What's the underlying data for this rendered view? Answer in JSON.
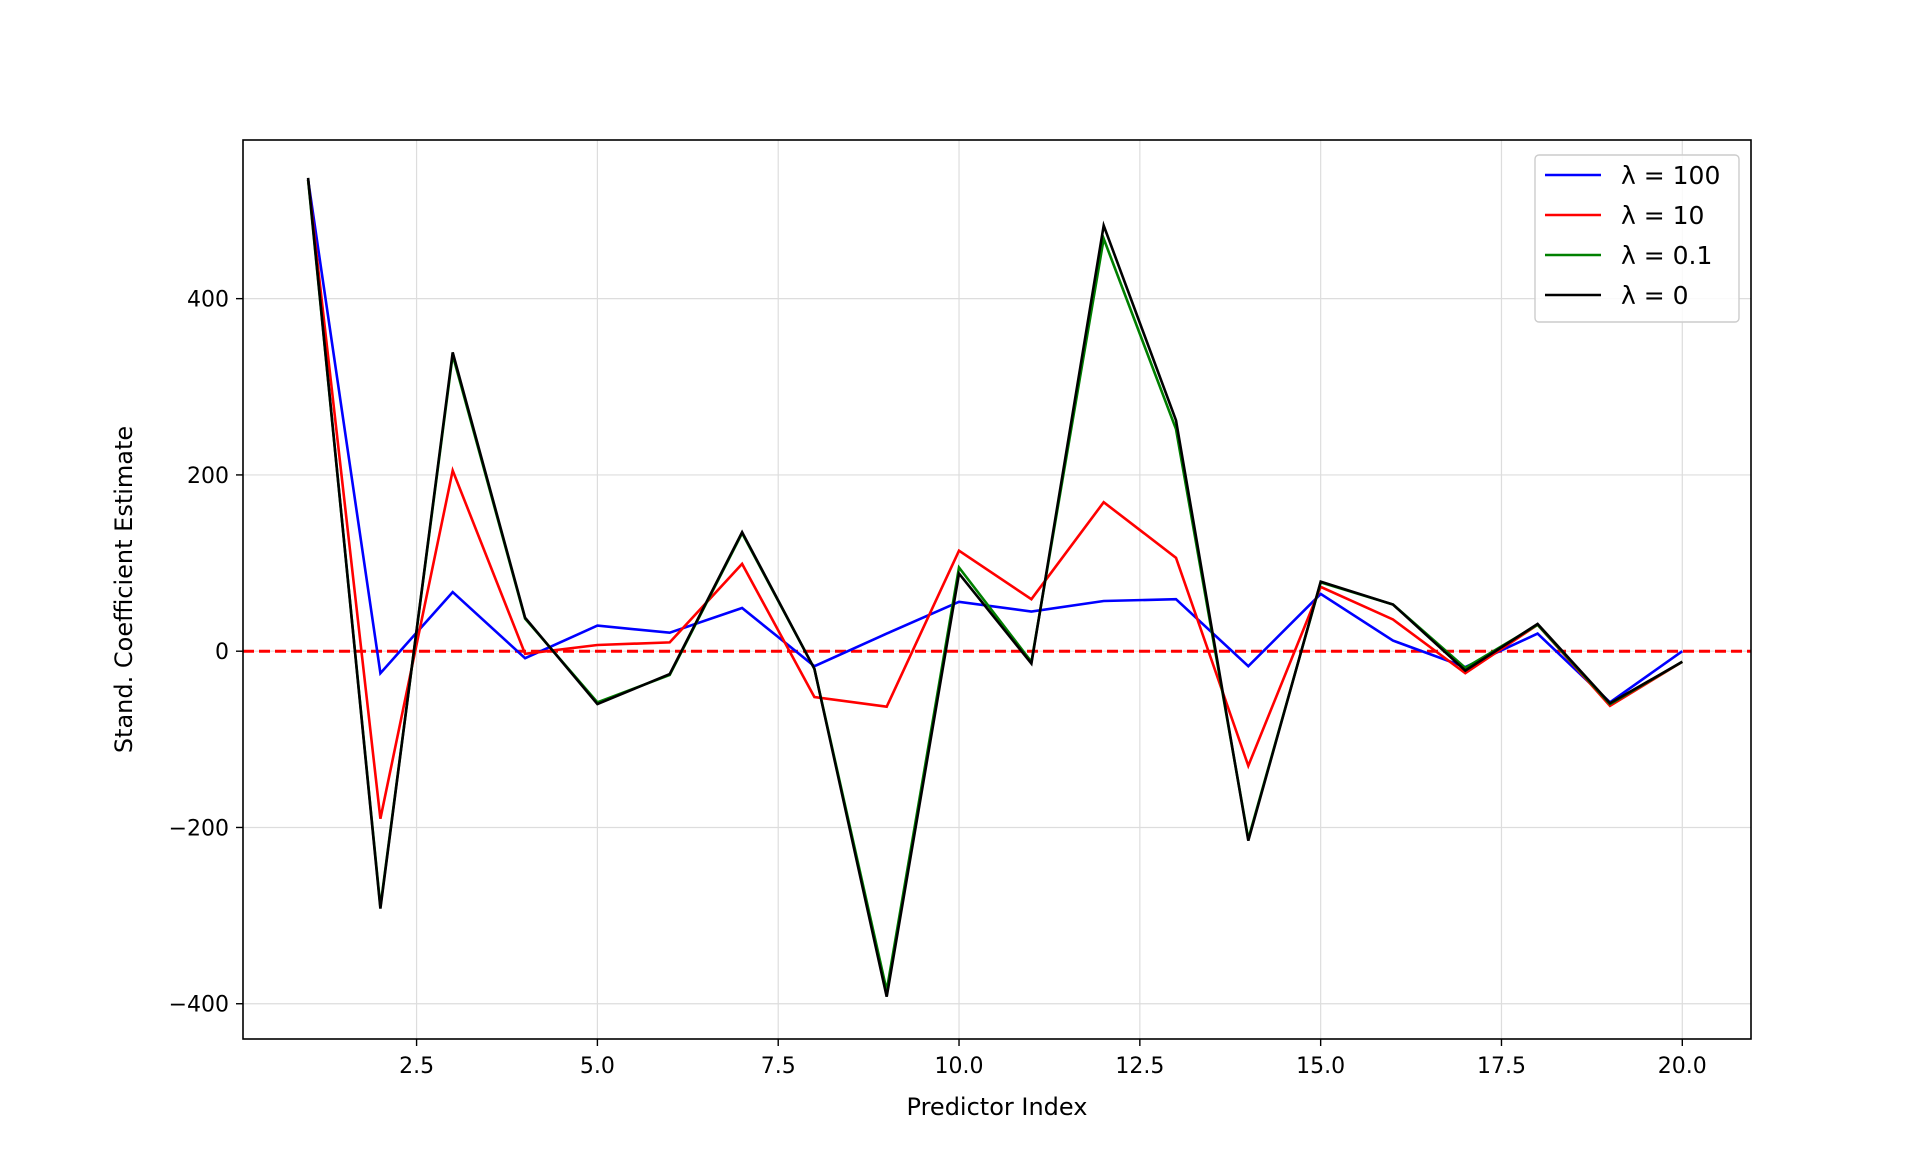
{
  "chart_data": {
    "type": "line",
    "title": "",
    "xlabel": "Predictor Index",
    "ylabel": "Stand. Coefficient Estimate",
    "xlim": [
      0.1,
      20.95
    ],
    "ylim": [
      -440,
      580
    ],
    "xticks": [
      2.5,
      5.0,
      7.5,
      10.0,
      12.5,
      15.0,
      17.5,
      20.0
    ],
    "xtick_labels": [
      "2.5",
      "5.0",
      "7.5",
      "10.0",
      "12.5",
      "15.0",
      "17.5",
      "20.0"
    ],
    "yticks": [
      -400,
      -200,
      0,
      200,
      400
    ],
    "ytick_labels": [
      "−400",
      "−200",
      "0",
      "200",
      "400"
    ],
    "grid": true,
    "legend_position": "top-right",
    "x": [
      1,
      2,
      3,
      4,
      5,
      6,
      7,
      8,
      9,
      10,
      11,
      12,
      13,
      14,
      15,
      16,
      17,
      18,
      19,
      20
    ],
    "series": [
      {
        "name": "λ = 100",
        "color": "#0000ff",
        "values": [
          535,
          -25,
          67,
          -8,
          29,
          21,
          49,
          -17,
          20,
          56,
          45,
          57,
          59,
          -17,
          65,
          12,
          -18,
          20,
          -58,
          0
        ]
      },
      {
        "name": "λ = 10",
        "color": "#ff0000",
        "values": [
          535,
          -190,
          205,
          -3,
          7,
          10,
          99,
          -52,
          -63,
          114,
          59,
          169,
          106,
          -130,
          73,
          36,
          -25,
          30,
          -62,
          -12
        ]
      },
      {
        "name": "λ = 0.1",
        "color": "#008000",
        "values": [
          535,
          -290,
          336,
          37,
          -58,
          -27,
          134,
          -20,
          -385,
          95,
          -12,
          468,
          252,
          -213,
          78,
          53,
          -19,
          30,
          -60,
          -12
        ]
      },
      {
        "name": "λ = 0",
        "color": "#000000",
        "values": [
          537,
          -292,
          339,
          38,
          -60,
          -26,
          135,
          -20,
          -392,
          88,
          -14,
          483,
          262,
          -215,
          79,
          53,
          -22,
          31,
          -59,
          -12
        ]
      }
    ],
    "reference_line": {
      "y": 0,
      "color": "#ff0000",
      "style": "dashed"
    }
  }
}
